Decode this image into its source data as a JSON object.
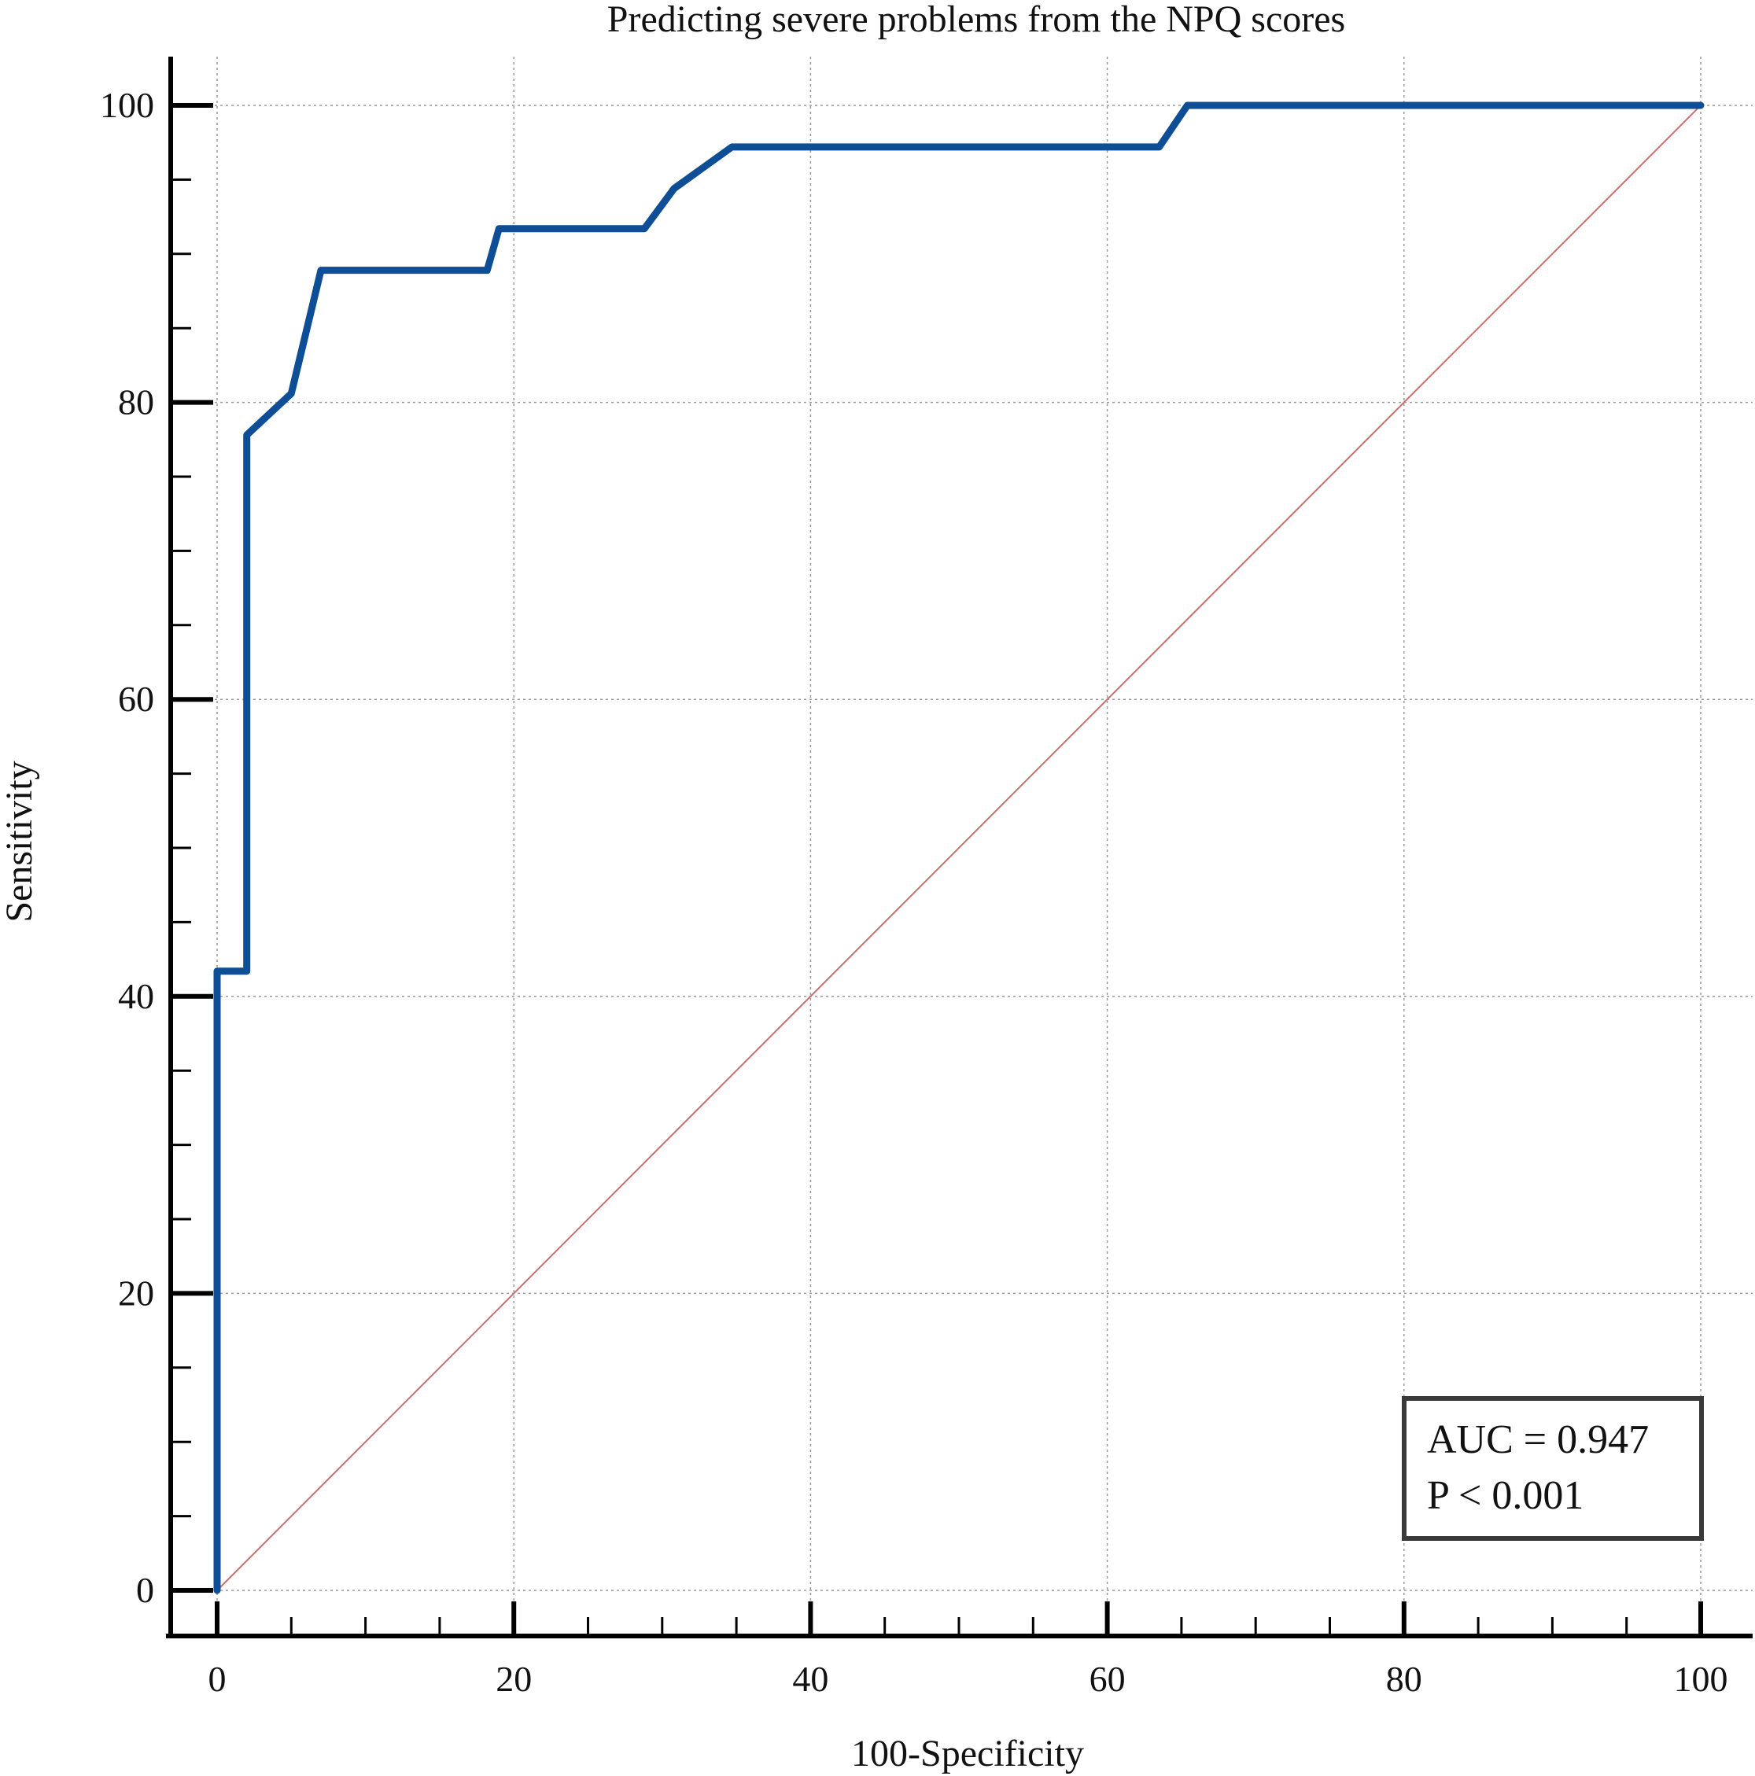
{
  "chart_data": {
    "type": "line",
    "title": "Predicting severe problems from the NPQ scores",
    "xlabel": "100-Specificity",
    "ylabel": "Sensitivity",
    "xlim": [
      0,
      100
    ],
    "ylim": [
      0,
      100
    ],
    "x_ticks": [
      0,
      20,
      40,
      60,
      80,
      100
    ],
    "y_ticks": [
      0,
      20,
      40,
      60,
      80,
      100
    ],
    "x_tick_labels": [
      "0",
      "20",
      "40",
      "60",
      "80",
      "100"
    ],
    "y_tick_labels": [
      "0",
      "20",
      "40",
      "60",
      "80",
      "100"
    ],
    "x_minor_step": 5,
    "y_minor_step": 5,
    "grid": true,
    "series": [
      {
        "x": [
          0,
          0,
          2,
          2,
          5,
          7,
          18.2,
          19,
          28.8,
          30.8,
          34.7,
          63.5,
          65.4,
          100
        ],
        "y": [
          0,
          41.7,
          41.7,
          77.8,
          80.6,
          88.9,
          88.9,
          91.7,
          91.7,
          94.4,
          97.2,
          97.2,
          100,
          100
        ],
        "color": "#0e4e96"
      },
      {
        "x": [
          0,
          100
        ],
        "y": [
          0,
          100
        ],
        "color": "#c9706a"
      }
    ],
    "annotations": {
      "auc": "AUC = 0.947",
      "p_value": "P < 0.001"
    }
  }
}
